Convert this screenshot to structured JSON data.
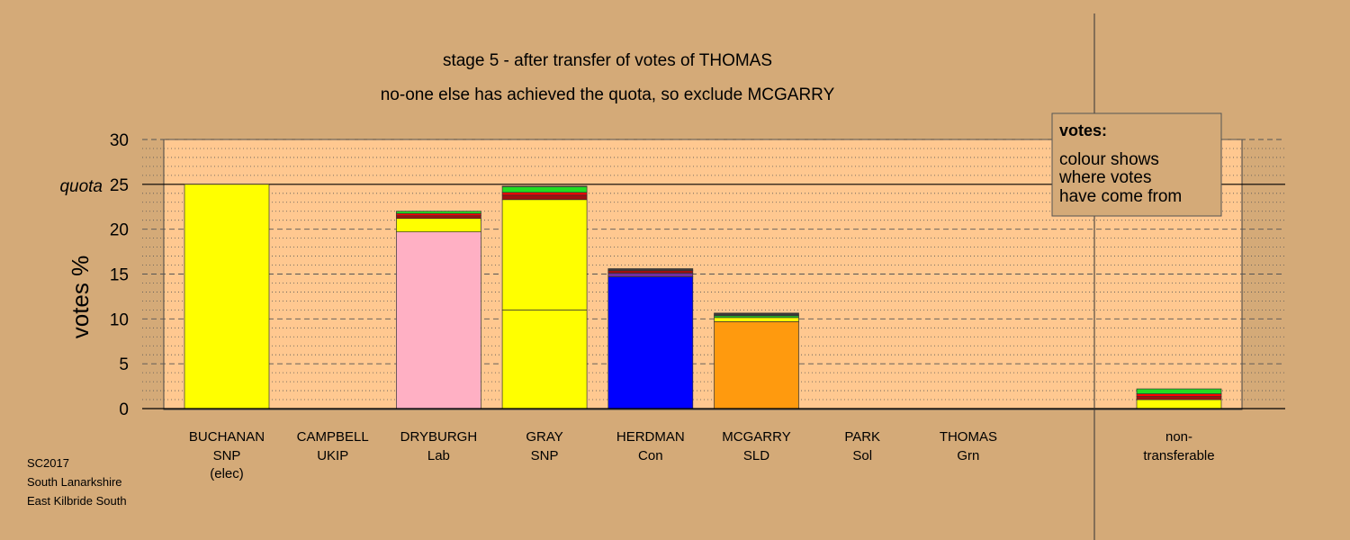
{
  "chart_data": {
    "type": "bar",
    "stacked": true,
    "title": "stage 5 - after transfer of votes of THOMAS",
    "subtitle": "no-one else has achieved the quota, so exclude MCGARRY",
    "ylabel": "votes %",
    "ylim": [
      0,
      30
    ],
    "yticks": [
      0,
      5,
      10,
      15,
      20,
      25,
      30
    ],
    "quota": 25,
    "quota_label": "quota",
    "grid": true,
    "candidates": [
      {
        "name": "BUCHANAN",
        "party": "SNP",
        "note": "(elec)",
        "segments": [
          {
            "value": 25.0,
            "color": "#ffff00"
          }
        ]
      },
      {
        "name": "CAMPBELL",
        "party": "UKIP",
        "note": "",
        "segments": []
      },
      {
        "name": "DRYBURGH",
        "party": "Lab",
        "note": "",
        "segments": [
          {
            "value": 19.7,
            "color": "#ffb0c4"
          },
          {
            "value": 1.5,
            "color": "#ffff00"
          },
          {
            "value": 0.3,
            "color": "#a01010"
          },
          {
            "value": 0.25,
            "color": "#ff0000"
          },
          {
            "value": 0.25,
            "color": "#22dd22"
          }
        ]
      },
      {
        "name": "GRAY",
        "party": "SNP",
        "note": "",
        "segments": [
          {
            "value": 11.0,
            "color": "#ffff00"
          },
          {
            "value": 12.3,
            "color": "#ffff00"
          },
          {
            "value": 0.5,
            "color": "#a01010"
          },
          {
            "value": 0.3,
            "color": "#ff0000"
          },
          {
            "value": 0.65,
            "color": "#22dd22"
          },
          {
            "value": 0.05,
            "color": "#3a3a3a"
          }
        ]
      },
      {
        "name": "HERDMAN",
        "party": "Con",
        "note": "",
        "segments": [
          {
            "value": 14.7,
            "color": "#0000ff"
          },
          {
            "value": 0.4,
            "color": "#7030a0"
          },
          {
            "value": 0.3,
            "color": "#a01010"
          },
          {
            "value": 0.2,
            "color": "#3a3a3a"
          }
        ]
      },
      {
        "name": "MCGARRY",
        "party": "SLD",
        "note": "",
        "segments": [
          {
            "value": 9.7,
            "color": "#ff9a0e"
          },
          {
            "value": 0.45,
            "color": "#ffff00"
          },
          {
            "value": 0.2,
            "color": "#22dd22"
          },
          {
            "value": 0.3,
            "color": "#3a3a3a"
          }
        ]
      },
      {
        "name": "PARK",
        "party": "Sol",
        "note": "",
        "segments": []
      },
      {
        "name": "THOMAS",
        "party": "Grn",
        "note": "",
        "segments": []
      }
    ],
    "non_transferable": {
      "label_line1": "non-",
      "label_line2": "transferable",
      "segments": [
        {
          "value": 1.0,
          "color": "#ffff00"
        },
        {
          "value": 0.35,
          "color": "#a01010"
        },
        {
          "value": 0.3,
          "color": "#ff0000"
        },
        {
          "value": 0.55,
          "color": "#22dd22"
        }
      ]
    },
    "legend": {
      "heading": "votes:",
      "lines": [
        "colour shows",
        "where votes",
        "have come from"
      ]
    },
    "footer": [
      "SC2017",
      "South Lanarkshire",
      "East Kilbride South"
    ]
  }
}
